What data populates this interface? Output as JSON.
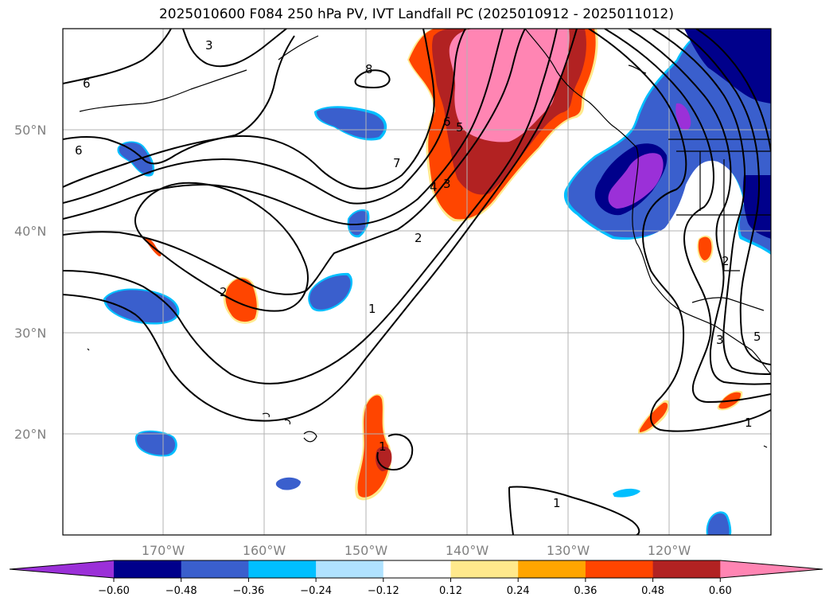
{
  "title": "2025010600 F084 250 hPa PV, IVT Landfall PC (2025010912 - 2025011012)",
  "lat_labels": [
    "50°N",
    "40°N",
    "30°N",
    "20°N"
  ],
  "lon_labels": [
    "170°W",
    "160°W",
    "150°W",
    "140°W",
    "130°W",
    "120°W"
  ],
  "colorbar": {
    "ticks": [
      "−0.60",
      "−0.48",
      "−0.36",
      "−0.24",
      "−0.12",
      "0.12",
      "0.24",
      "0.36",
      "0.48",
      "0.60"
    ],
    "colors": [
      "#9b30d8",
      "#00008b",
      "#3a5fcd",
      "#00bfff",
      "#b0e2ff",
      "#ffffff",
      "#ffe98c",
      "#ffa500",
      "#ff4500",
      "#b22222",
      "#ff85b3"
    ]
  },
  "contour_labels": [
    "6",
    "6",
    "3",
    "8",
    "7",
    "6",
    "5",
    "4",
    "3",
    "2",
    "1",
    "2",
    "1",
    "1",
    "1",
    "2",
    "3",
    "5"
  ],
  "shading_colors": {
    "pink": "#ff85b3",
    "darkred": "#b22222",
    "orangered": "#ff4500",
    "orange": "#ffa500",
    "yellow": "#ffe98c",
    "purple": "#9b30d8",
    "navy": "#00008b",
    "blue": "#3a5fcd",
    "cyan": "#00bfff"
  }
}
